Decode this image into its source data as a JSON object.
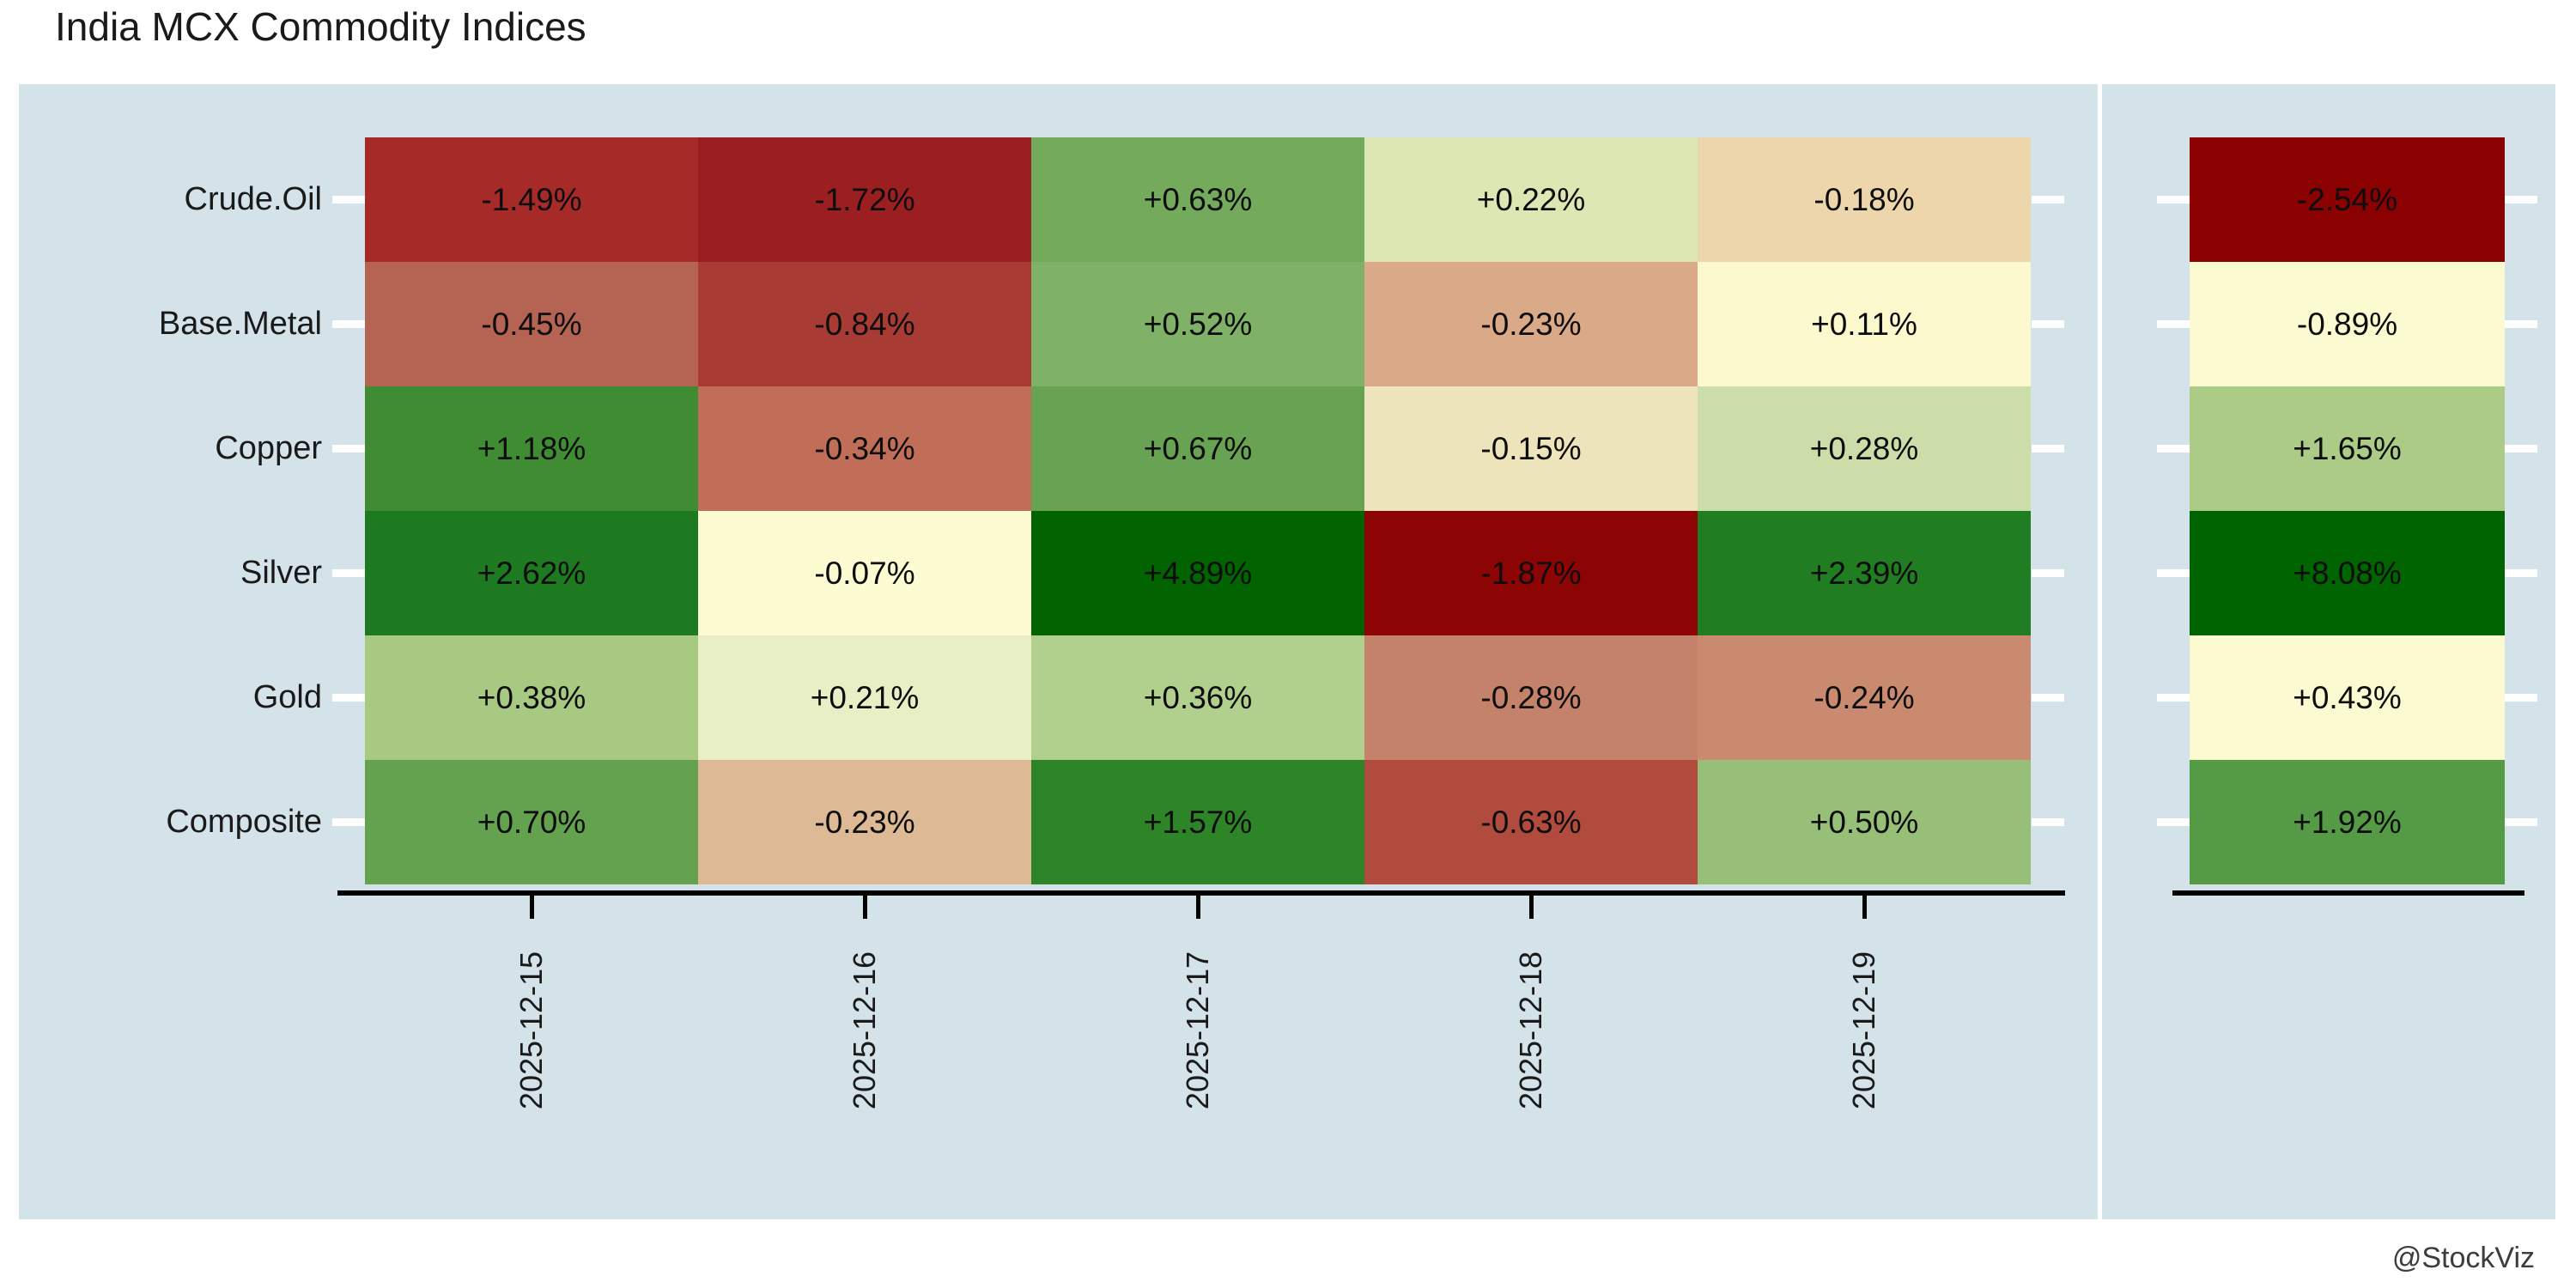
{
  "title": "India MCX Commodity Indices",
  "watermark": "@StockViz",
  "colors": {
    "panel_background": "#d4e2ea",
    "axis_line": "#000000",
    "row_tick": "#ffffff",
    "text": "#1a1a1a"
  },
  "chart_data": {
    "type": "heatmap",
    "title": "India MCX Commodity Indices",
    "columns": [
      "2025-12-15",
      "2025-12-16",
      "2025-12-17",
      "2025-12-18",
      "2025-12-19"
    ],
    "rows": [
      "Crude.Oil",
      "Base.Metal",
      "Copper",
      "Silver",
      "Gold",
      "Composite"
    ],
    "legend": "none",
    "facets": [
      "daily-returns",
      "cumulative-return"
    ],
    "series": [
      {
        "name": "Crude.Oil",
        "values": [
          -1.49,
          -1.72,
          0.63,
          0.22,
          -0.18
        ],
        "labels": [
          "-1.49%",
          "-1.72%",
          "+0.63%",
          "+0.22%",
          "-0.18%"
        ],
        "colors": [
          "#a52a28",
          "#9b1f20",
          "#73aa5c",
          "#dde7b4",
          "#edd6ab"
        ],
        "cum_value": -2.54,
        "cum_label": "-2.54%",
        "cum_color": "#8b0000"
      },
      {
        "name": "Base.Metal",
        "values": [
          -0.45,
          -0.84,
          0.52,
          -0.23,
          0.11
        ],
        "labels": [
          "-0.45%",
          "-0.84%",
          "+0.52%",
          "-0.23%",
          "+0.11%"
        ],
        "colors": [
          "#b56352",
          "#a83b34",
          "#7fb266",
          "#d9a988",
          "#fbf9cd"
        ],
        "cum_value": -0.89,
        "cum_label": "-0.89%",
        "cum_color": "#fcfad0"
      },
      {
        "name": "Copper",
        "values": [
          1.18,
          -0.34,
          0.67,
          -0.15,
          0.28
        ],
        "labels": [
          "+1.18%",
          "-0.34%",
          "+0.67%",
          "-0.15%",
          "+0.28%"
        ],
        "colors": [
          "#3f8c33",
          "#c06e57",
          "#67a352",
          "#eee4bc",
          "#cdddaa"
        ],
        "cum_value": 1.65,
        "cum_label": "+1.65%",
        "cum_color": "#abcb87"
      },
      {
        "name": "Silver",
        "values": [
          2.62,
          -0.07,
          4.89,
          -1.87,
          2.39
        ],
        "labels": [
          "+2.62%",
          "-0.07%",
          "+4.89%",
          "-1.87%",
          "+2.39%"
        ],
        "colors": [
          "#1d7a20",
          "#fcfbd2",
          "#016401",
          "#8d0404",
          "#207d22"
        ],
        "cum_value": 8.08,
        "cum_label": "+8.08%",
        "cum_color": "#006400"
      },
      {
        "name": "Gold",
        "values": [
          0.38,
          0.21,
          0.36,
          -0.28,
          -0.24
        ],
        "labels": [
          "+0.38%",
          "+0.21%",
          "+0.36%",
          "-0.28%",
          "-0.24%"
        ],
        "colors": [
          "#a7c981",
          "#e9efc4",
          "#b2d08d",
          "#c5826a",
          "#ca8a6f"
        ],
        "cum_value": 0.43,
        "cum_label": "+0.43%",
        "cum_color": "#fcfad1"
      },
      {
        "name": "Composite",
        "values": [
          0.7,
          -0.23,
          1.57,
          -0.63,
          0.5
        ],
        "labels": [
          "+0.70%",
          "-0.23%",
          "+1.57%",
          "-0.63%",
          "+0.50%"
        ],
        "colors": [
          "#64a24f",
          "#ddb996",
          "#2d8527",
          "#b14b3d",
          "#97bf78"
        ],
        "cum_value": 1.92,
        "cum_label": "+1.92%",
        "cum_color": "#559a45"
      }
    ]
  }
}
